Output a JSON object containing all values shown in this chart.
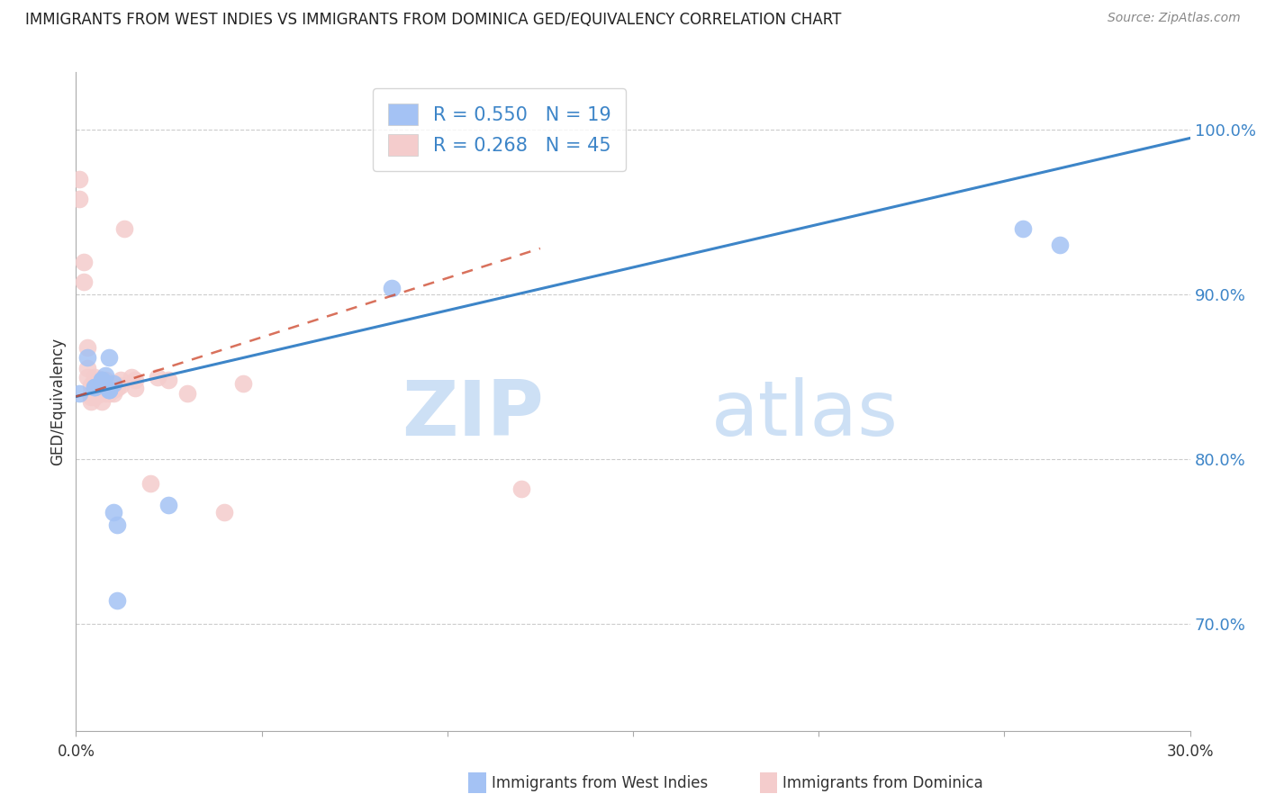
{
  "title": "IMMIGRANTS FROM WEST INDIES VS IMMIGRANTS FROM DOMINICA GED/EQUIVALENCY CORRELATION CHART",
  "source": "Source: ZipAtlas.com",
  "ylabel": "GED/Equivalency",
  "ytick_labels": [
    "70.0%",
    "80.0%",
    "90.0%",
    "100.0%"
  ],
  "ytick_values": [
    0.7,
    0.8,
    0.9,
    1.0
  ],
  "xlim": [
    0.0,
    0.3
  ],
  "ylim": [
    0.635,
    1.035
  ],
  "r1": 0.55,
  "r2": 0.268,
  "n1": 19,
  "n2": 45,
  "color_blue": "#a4c2f4",
  "color_pink": "#f4cccc",
  "color_blue_line": "#3d85c8",
  "color_pink_line": "#cc4125",
  "watermark_zip": "ZIP",
  "watermark_atlas": "atlas",
  "footer_label1": "Immigrants from West Indies",
  "footer_label2": "Immigrants from Dominica",
  "blue_line_x": [
    0.0,
    0.3
  ],
  "blue_line_y": [
    0.838,
    0.995
  ],
  "pink_line_x": [
    0.0,
    0.125
  ],
  "pink_line_y": [
    0.838,
    0.928
  ],
  "west_indies_x": [
    0.001,
    0.003,
    0.005,
    0.005,
    0.007,
    0.007,
    0.008,
    0.009,
    0.009,
    0.009,
    0.01,
    0.01,
    0.011,
    0.011,
    0.085,
    0.255,
    0.265,
    0.009,
    0.025
  ],
  "west_indies_y": [
    0.84,
    0.862,
    0.844,
    0.844,
    0.848,
    0.848,
    0.851,
    0.842,
    0.842,
    0.842,
    0.846,
    0.768,
    0.76,
    0.714,
    0.904,
    0.94,
    0.93,
    0.862,
    0.772
  ],
  "dominica_x": [
    0.001,
    0.001,
    0.002,
    0.002,
    0.003,
    0.003,
    0.003,
    0.004,
    0.004,
    0.004,
    0.004,
    0.005,
    0.005,
    0.005,
    0.005,
    0.006,
    0.006,
    0.006,
    0.007,
    0.007,
    0.007,
    0.008,
    0.008,
    0.008,
    0.008,
    0.009,
    0.009,
    0.01,
    0.01,
    0.01,
    0.011,
    0.012,
    0.012,
    0.013,
    0.015,
    0.016,
    0.016,
    0.02,
    0.022,
    0.025,
    0.03,
    0.04,
    0.045,
    0.12,
    0.007
  ],
  "dominica_y": [
    0.97,
    0.958,
    0.92,
    0.908,
    0.868,
    0.855,
    0.85,
    0.845,
    0.84,
    0.838,
    0.835,
    0.85,
    0.845,
    0.84,
    0.838,
    0.848,
    0.845,
    0.842,
    0.848,
    0.845,
    0.84,
    0.848,
    0.845,
    0.843,
    0.84,
    0.845,
    0.84,
    0.845,
    0.842,
    0.84,
    0.843,
    0.848,
    0.845,
    0.94,
    0.85,
    0.848,
    0.843,
    0.785,
    0.85,
    0.848,
    0.84,
    0.768,
    0.846,
    0.782,
    0.835
  ]
}
